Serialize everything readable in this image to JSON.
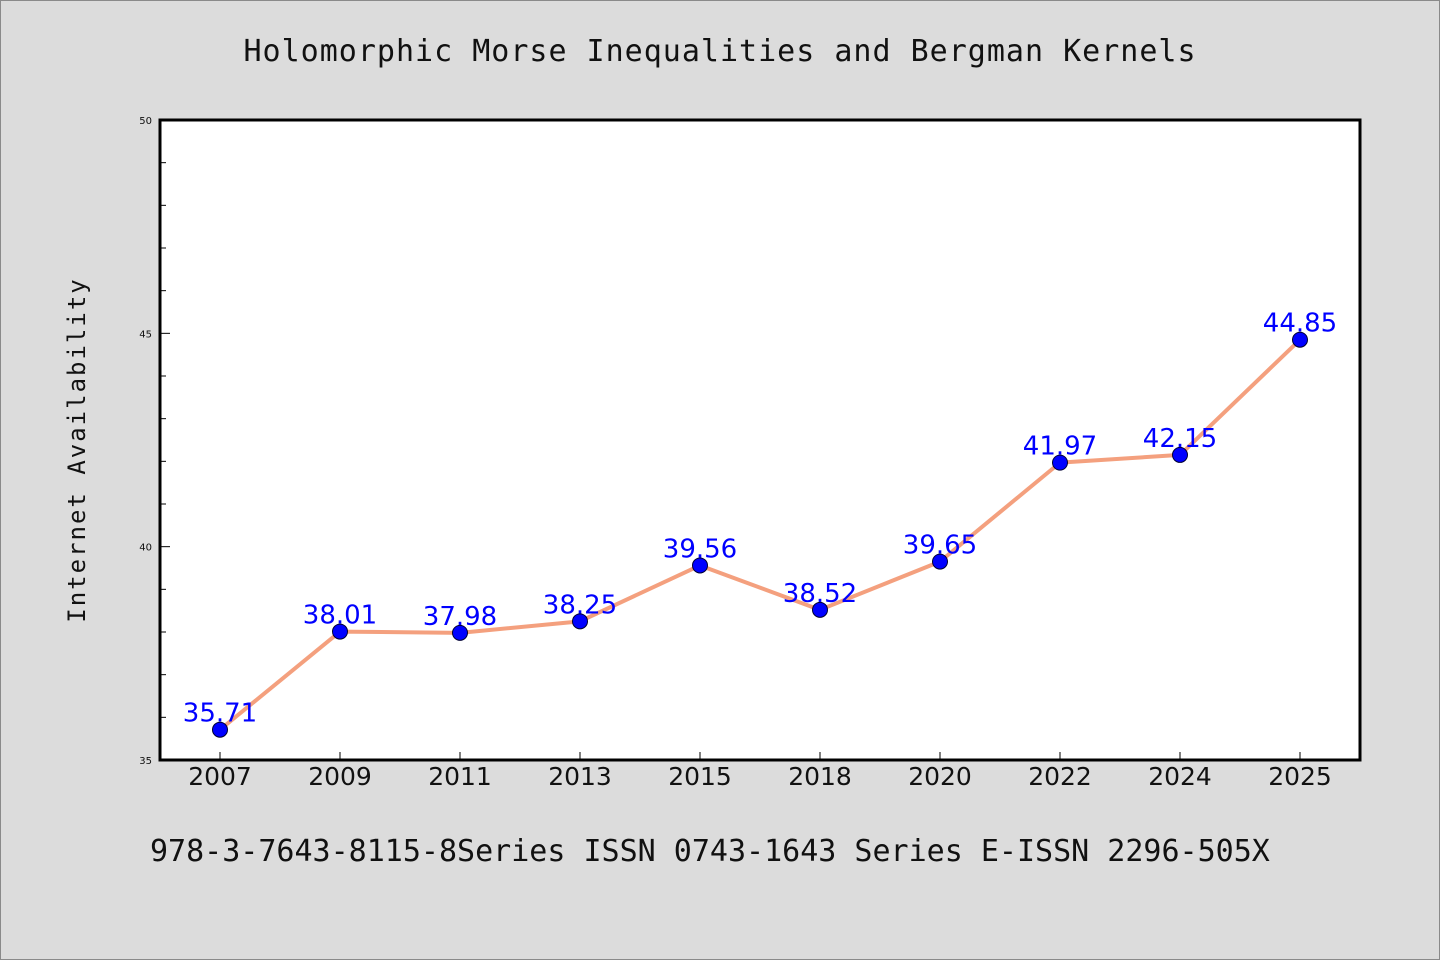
{
  "chart_data": {
    "type": "line",
    "title": "Holomorphic Morse Inequalities and Bergman Kernels",
    "xlabel": "",
    "ylabel": "Internet Availability",
    "categories": [
      "2007",
      "2009",
      "2011",
      "2013",
      "2015",
      "2018",
      "2020",
      "2022",
      "2024",
      "2025"
    ],
    "series": [
      {
        "values": [
          35.71,
          38.01,
          37.98,
          38.25,
          39.56,
          38.52,
          39.65,
          41.97,
          42.15,
          44.85
        ],
        "data_labels": [
          "35.71",
          "38.01",
          "37.98",
          "38.25",
          "39.56",
          "38.52",
          "39.65",
          "41.97",
          "42.15",
          "44.85"
        ],
        "line_color": "#f4a07e",
        "marker_color": "#0000ff"
      }
    ],
    "ylim": [
      35,
      50
    ],
    "yticks": [
      "35",
      "40",
      "45",
      "50"
    ],
    "grid": false,
    "legend": "none"
  },
  "footer": {
    "text": "978-3-7643-8115-8Series ISSN 0743-1643 Series E-ISSN 2296-505X"
  },
  "colors": {
    "background": "#dcdcdc",
    "plot_background": "#ffffff",
    "line": "#f4a07e",
    "marker": "#0000ff",
    "label": "#0000ff"
  }
}
